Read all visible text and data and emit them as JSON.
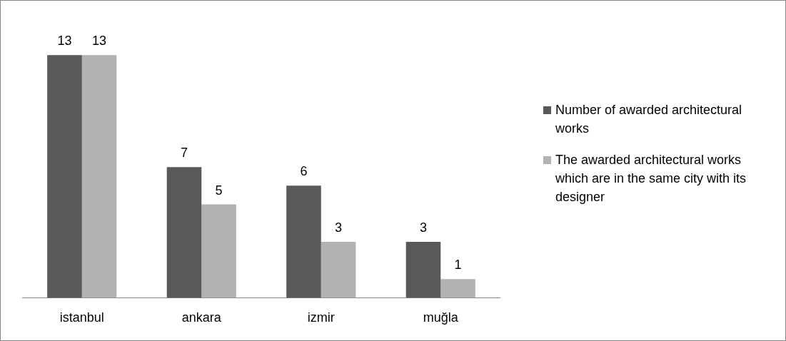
{
  "chart_data": {
    "type": "bar",
    "categories": [
      "istanbul",
      "ankara",
      "izmir",
      "muğla"
    ],
    "series": [
      {
        "name": "Number of awarded architectural works",
        "color": "#595959",
        "values": [
          13,
          7,
          6,
          3
        ]
      },
      {
        "name": "The awarded architectural works which are in the same city with its designer",
        "color": "#b2b2b2",
        "values": [
          13,
          5,
          3,
          1
        ]
      }
    ],
    "data_labels": true,
    "legend": "right",
    "grid": false
  }
}
